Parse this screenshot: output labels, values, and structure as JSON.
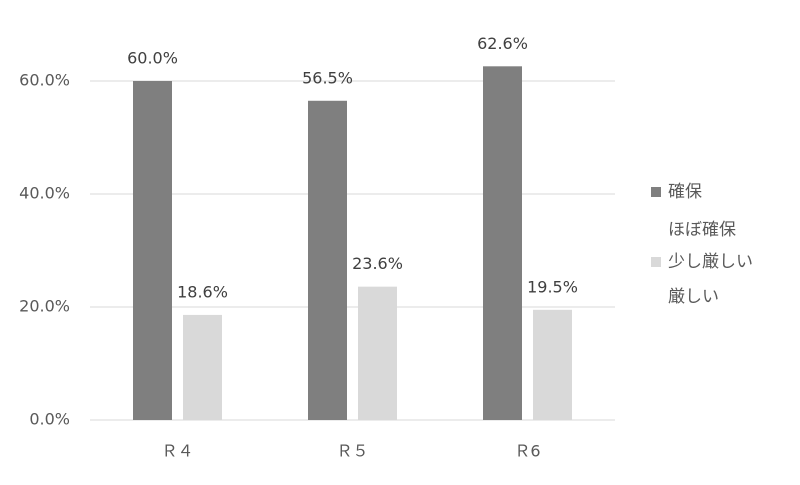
{
  "chart_data": {
    "type": "bar",
    "categories": [
      "Ｒ４",
      "Ｒ５",
      "Ｒ6"
    ],
    "series": [
      {
        "name": "確保",
        "color": "#7f7f7f",
        "values": [
          60.0,
          56.5,
          62.6
        ],
        "value_labels": [
          "60.0%",
          "56.5%",
          "62.6%"
        ]
      },
      {
        "name": "ほぼ確保",
        "color": "#ffffff",
        "values": [
          null,
          null,
          null
        ]
      },
      {
        "name": "少し厳しい",
        "color": "#d9d9d9",
        "values": [
          18.6,
          23.6,
          19.5
        ],
        "value_labels": [
          "18.6%",
          "23.6%",
          "19.5%"
        ]
      },
      {
        "name": "厳しい",
        "color": "#ffffff",
        "values": [
          null,
          null,
          null
        ]
      }
    ],
    "ylim": [
      0,
      70
    ],
    "yticks": [
      {
        "value": 0,
        "label": "0.0%"
      },
      {
        "value": 20,
        "label": "20.0%"
      },
      {
        "value": 40,
        "label": "40.0%"
      },
      {
        "value": 60,
        "label": "60.0%"
      }
    ],
    "grid": true,
    "legend": "right"
  }
}
